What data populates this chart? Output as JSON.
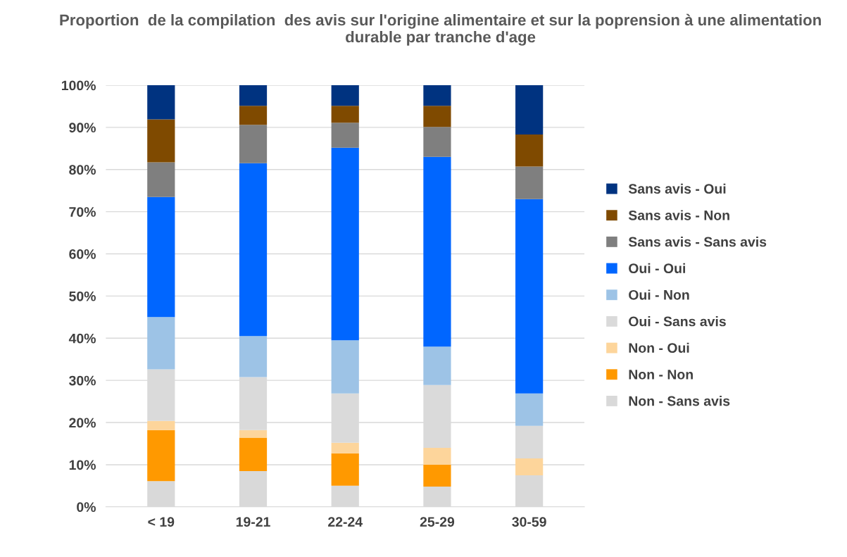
{
  "chart_data": {
    "type": "bar",
    "stacked": true,
    "title": "Proportion  de la compilation  des avis sur l'origine alimentaire et sur la poprension à une alimentation durable par tranche d'age",
    "categories": [
      "< 19",
      "19-21",
      "22-24",
      "25-29",
      "30-59"
    ],
    "series": [
      {
        "name": "Non - Sans avis",
        "color": "#d9d9d9",
        "values": [
          6.1,
          8.5,
          5.0,
          4.8,
          7.5
        ]
      },
      {
        "name": "Non - Non",
        "color": "#ff9900",
        "values": [
          12.1,
          7.9,
          7.7,
          5.2,
          0
        ]
      },
      {
        "name": "Non - Oui",
        "color": "#fdd59b",
        "values": [
          2.2,
          1.8,
          2.5,
          4.0,
          4.0
        ]
      },
      {
        "name": "Oui - Sans avis",
        "color": "#dadada",
        "values": [
          12.2,
          12.6,
          11.7,
          14.9,
          7.7
        ]
      },
      {
        "name": "Oui - Non",
        "color": "#9dc3e6",
        "values": [
          12.4,
          9.7,
          12.6,
          9.1,
          7.7
        ]
      },
      {
        "name": "Oui - Oui",
        "color": "#0066ff",
        "values": [
          28.5,
          41.0,
          45.7,
          45.0,
          46.1
        ]
      },
      {
        "name": "Sans avis - Sans avis",
        "color": "#7f7f7f",
        "values": [
          8.2,
          9.1,
          5.9,
          7.1,
          7.7
        ]
      },
      {
        "name": "Sans avis - Non",
        "color": "#7f4a00",
        "values": [
          10.2,
          4.5,
          4.0,
          5.0,
          7.6
        ]
      },
      {
        "name": "Sans avis - Oui",
        "color": "#003380",
        "values": [
          8.1,
          4.9,
          4.9,
          4.9,
          11.7
        ]
      }
    ],
    "ylim": [
      0,
      100
    ],
    "yticks": [
      {
        "value": 0,
        "label": "0%"
      },
      {
        "value": 10,
        "label": "10%"
      },
      {
        "value": 20,
        "label": "20%"
      },
      {
        "value": 30,
        "label": "30%"
      },
      {
        "value": 40,
        "label": "40%"
      },
      {
        "value": 50,
        "label": "50%"
      },
      {
        "value": 60,
        "label": "60%"
      },
      {
        "value": 70,
        "label": "70%"
      },
      {
        "value": 80,
        "label": "80%"
      },
      {
        "value": 90,
        "label": "90%"
      },
      {
        "value": 100,
        "label": "100%"
      }
    ],
    "grid": "y",
    "legend": "right"
  }
}
